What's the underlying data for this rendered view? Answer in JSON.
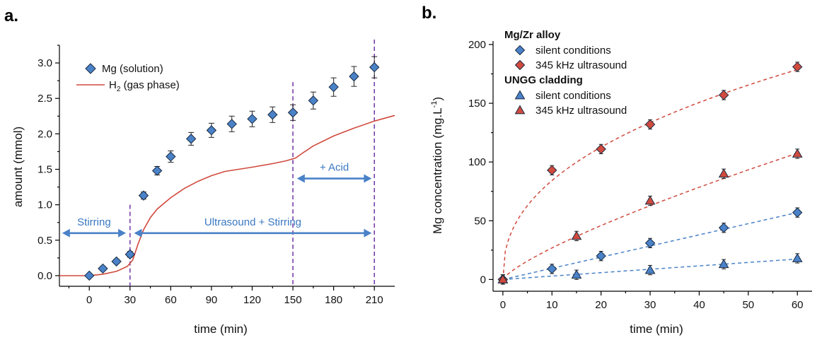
{
  "chart_data": [
    {
      "panel_label": "a.",
      "type": "scatter",
      "xlabel": "time (min)",
      "ylabel": "amount (mmol)",
      "xlim": [
        -22,
        225
      ],
      "ylim": [
        -0.15,
        3.25
      ],
      "xticks": [
        0,
        30,
        60,
        90,
        120,
        150,
        180,
        210
      ],
      "yticks": [
        0.0,
        0.5,
        1.0,
        1.5,
        2.0,
        2.5,
        3.0
      ],
      "ytick_labels": [
        "0.0",
        "0.5",
        "1.0",
        "1.5",
        "2.0",
        "2.5",
        "3.0"
      ],
      "legend_position": "top-left",
      "series": [
        {
          "name": "Mg (solution)",
          "kind": "scatter",
          "marker": "diamond",
          "color": "#4a82c8",
          "points": [
            {
              "x": 0,
              "y": 0.0,
              "err": 0.0
            },
            {
              "x": 10,
              "y": 0.1,
              "err": 0.03
            },
            {
              "x": 20,
              "y": 0.2,
              "err": 0.03
            },
            {
              "x": 30,
              "y": 0.3,
              "err": 0.04
            },
            {
              "x": 40,
              "y": 1.13,
              "err": 0.05
            },
            {
              "x": 50,
              "y": 1.48,
              "err": 0.06
            },
            {
              "x": 60,
              "y": 1.68,
              "err": 0.08
            },
            {
              "x": 75,
              "y": 1.93,
              "err": 0.09
            },
            {
              "x": 90,
              "y": 2.05,
              "err": 0.1
            },
            {
              "x": 105,
              "y": 2.14,
              "err": 0.11
            },
            {
              "x": 120,
              "y": 2.21,
              "err": 0.11
            },
            {
              "x": 135,
              "y": 2.27,
              "err": 0.11
            },
            {
              "x": 150,
              "y": 2.3,
              "err": 0.11
            },
            {
              "x": 165,
              "y": 2.47,
              "err": 0.12
            },
            {
              "x": 180,
              "y": 2.66,
              "err": 0.13
            },
            {
              "x": 195,
              "y": 2.81,
              "err": 0.14
            },
            {
              "x": 210,
              "y": 2.94,
              "err": 0.15
            }
          ]
        },
        {
          "name": "H2 (gas phase)",
          "name_main": "H",
          "name_sub": "2",
          "name_rest": " (gas phase)",
          "kind": "line",
          "color": "#d04a3e",
          "points": [
            {
              "x": -22,
              "y": 0.0
            },
            {
              "x": 0,
              "y": 0.0
            },
            {
              "x": 10,
              "y": 0.02
            },
            {
              "x": 20,
              "y": 0.06
            },
            {
              "x": 28,
              "y": 0.13
            },
            {
              "x": 32,
              "y": 0.22
            },
            {
              "x": 36,
              "y": 0.45
            },
            {
              "x": 40,
              "y": 0.65
            },
            {
              "x": 45,
              "y": 0.82
            },
            {
              "x": 50,
              "y": 0.94
            },
            {
              "x": 60,
              "y": 1.1
            },
            {
              "x": 70,
              "y": 1.23
            },
            {
              "x": 80,
              "y": 1.33
            },
            {
              "x": 90,
              "y": 1.41
            },
            {
              "x": 100,
              "y": 1.47
            },
            {
              "x": 110,
              "y": 1.5
            },
            {
              "x": 120,
              "y": 1.53
            },
            {
              "x": 135,
              "y": 1.58
            },
            {
              "x": 145,
              "y": 1.62
            },
            {
              "x": 152,
              "y": 1.66
            },
            {
              "x": 158,
              "y": 1.74
            },
            {
              "x": 165,
              "y": 1.83
            },
            {
              "x": 180,
              "y": 1.97
            },
            {
              "x": 195,
              "y": 2.08
            },
            {
              "x": 210,
              "y": 2.18
            },
            {
              "x": 225,
              "y": 2.26
            }
          ]
        }
      ],
      "vlines": [
        30,
        150,
        210
      ],
      "annotations": [
        {
          "text": "Stirring",
          "x_from": -20,
          "x_to": 27,
          "y": 0.6
        },
        {
          "text": "Ultrasound + Stirring",
          "x_from": 33,
          "x_to": 208,
          "y": 0.6
        },
        {
          "text": "+ Acid",
          "x_from": 153,
          "x_to": 208,
          "y": 1.37
        }
      ]
    },
    {
      "panel_label": "b.",
      "type": "scatter",
      "xlabel": "time (min)",
      "ylabel_main": "Mg concentration (mg.L",
      "ylabel_sup": "-1",
      "ylabel_close": ")",
      "xlim": [
        -2,
        63
      ],
      "ylim": [
        -10,
        203
      ],
      "xticks": [
        0,
        10,
        20,
        30,
        40,
        50,
        60
      ],
      "yticks": [
        0,
        50,
        100,
        150,
        200
      ],
      "legend_position": "top-left",
      "legend_groups": [
        {
          "heading": "Mg/Zr alloy",
          "entries": [
            0,
            1
          ]
        },
        {
          "heading": "UNGG cladding",
          "entries": [
            2,
            3
          ]
        }
      ],
      "series": [
        {
          "name": "silent conditions",
          "group": "Mg/Zr alloy",
          "marker": "diamond",
          "color": "#4a82c8",
          "fit_color": "#4a82c8",
          "points": [
            {
              "x": 0,
              "y": 0,
              "err": 4
            },
            {
              "x": 10,
              "y": 9,
              "err": 4
            },
            {
              "x": 20,
              "y": 20,
              "err": 4
            },
            {
              "x": 30,
              "y": 31,
              "err": 4
            },
            {
              "x": 45,
              "y": 44,
              "err": 4
            },
            {
              "x": 60,
              "y": 57,
              "err": 4
            }
          ],
          "fit": {
            "form": "linear",
            "a": 0.95
          }
        },
        {
          "name": "345 kHz ultrasound",
          "group": "Mg/Zr alloy",
          "marker": "diamond",
          "color": "#d04a3e",
          "fit_color": "#d04a3e",
          "points": [
            {
              "x": 0,
              "y": 0,
              "err": 4
            },
            {
              "x": 10,
              "y": 93,
              "err": 4
            },
            {
              "x": 20,
              "y": 111,
              "err": 4
            },
            {
              "x": 30,
              "y": 132,
              "err": 4
            },
            {
              "x": 45,
              "y": 157,
              "err": 4
            },
            {
              "x": 60,
              "y": 181,
              "err": 4
            }
          ],
          "fit": {
            "form": "power",
            "a": 32.0,
            "b": 0.42
          }
        },
        {
          "name": "silent conditions",
          "group": "UNGG cladding",
          "marker": "triangle",
          "color": "#4a82c8",
          "fit_color": "#4a82c8",
          "points": [
            {
              "x": 0,
              "y": 0,
              "err": 4
            },
            {
              "x": 15,
              "y": 4,
              "err": 4
            },
            {
              "x": 30,
              "y": 8,
              "err": 4
            },
            {
              "x": 45,
              "y": 13,
              "err": 4
            },
            {
              "x": 60,
              "y": 18,
              "err": 4
            }
          ],
          "fit": {
            "form": "linear",
            "a": 0.29
          }
        },
        {
          "name": "345 kHz ultrasound",
          "group": "UNGG cladding",
          "marker": "triangle",
          "color": "#d04a3e",
          "fit_color": "#d04a3e",
          "points": [
            {
              "x": 0,
              "y": 0,
              "err": 4
            },
            {
              "x": 15,
              "y": 37,
              "err": 4
            },
            {
              "x": 30,
              "y": 67,
              "err": 4
            },
            {
              "x": 45,
              "y": 90,
              "err": 4
            },
            {
              "x": 60,
              "y": 107,
              "err": 4
            }
          ],
          "fit": {
            "form": "power",
            "a": 4.5,
            "b": 0.775
          }
        }
      ]
    }
  ]
}
